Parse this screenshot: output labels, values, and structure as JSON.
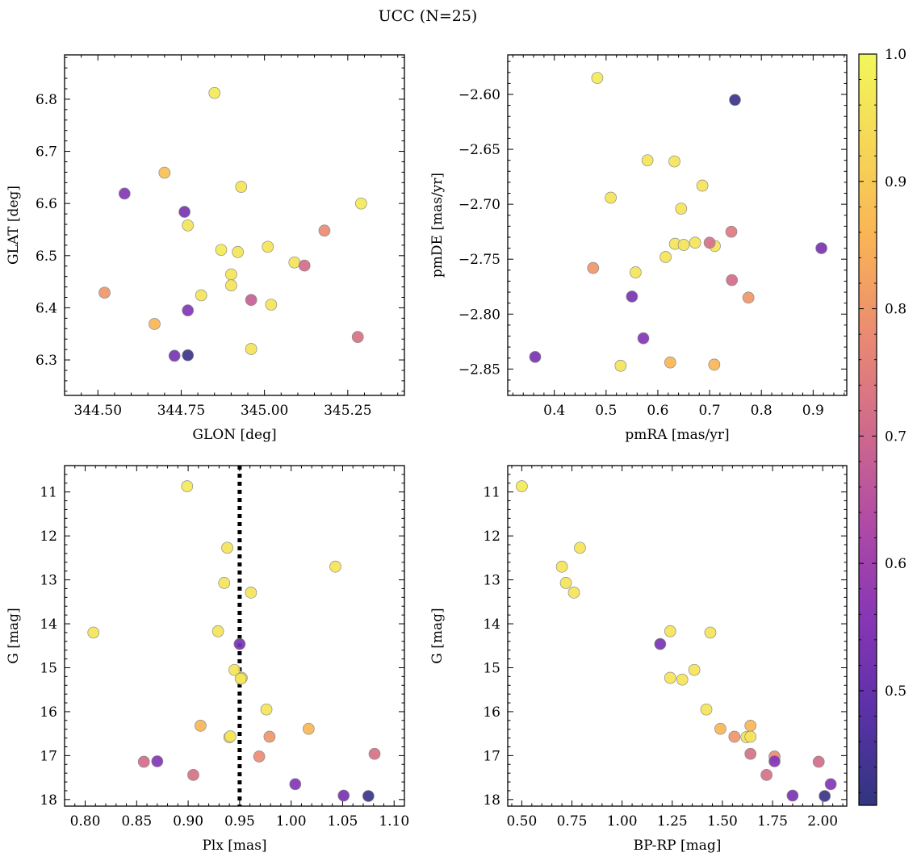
{
  "figure": {
    "title": "UCC (N=25)"
  },
  "colorbar": {
    "range": [
      0.41,
      1.0
    ],
    "ticks": [
      0.5,
      0.6,
      0.7,
      0.8,
      0.9,
      1.0
    ],
    "tick_labels": [
      "0.5",
      "0.6",
      "0.7",
      "0.8",
      "0.9",
      "1.0"
    ],
    "colormap": "plasma (truncated)",
    "stops": [
      "#31357f",
      "#5b31a8",
      "#8836b6",
      "#b04aa6",
      "#d06a8c",
      "#ea8a72",
      "#fab256",
      "#f6d656",
      "#f2f75a"
    ]
  },
  "chart_data": [
    {
      "type": "scatter",
      "xlabel": "GLON [deg]",
      "ylabel": "GLAT [deg]",
      "xlim": [
        344.4,
        345.42
      ],
      "ylim": [
        6.232,
        6.885
      ],
      "invert_y": false,
      "xticks": [
        344.5,
        344.75,
        345.0,
        345.25
      ],
      "xtick_labels": [
        "344.50",
        "344.75",
        "345.00",
        "345.25"
      ],
      "yticks": [
        6.3,
        6.4,
        6.5,
        6.6,
        6.7,
        6.8
      ],
      "ytick_labels": [
        "6.3",
        "6.4",
        "6.5",
        "6.6",
        "6.7",
        "6.8"
      ],
      "x": [
        344.85,
        344.7,
        344.58,
        344.76,
        344.77,
        344.93,
        345.29,
        344.87,
        344.92,
        345.01,
        345.09,
        345.18,
        345.12,
        344.9,
        344.9,
        344.81,
        344.52,
        344.96,
        345.02,
        344.77,
        344.67,
        345.28,
        344.96,
        344.73,
        344.77
      ],
      "y": [
        6.812,
        6.659,
        6.619,
        6.584,
        6.558,
        6.632,
        6.6,
        6.511,
        6.507,
        6.517,
        6.487,
        6.548,
        6.481,
        6.464,
        6.443,
        6.424,
        6.429,
        6.415,
        6.406,
        6.395,
        6.369,
        6.344,
        6.321,
        6.308,
        6.309
      ],
      "color_value": [
        0.97,
        0.88,
        0.55,
        0.53,
        0.96,
        0.96,
        0.97,
        0.97,
        0.96,
        0.96,
        0.96,
        0.78,
        0.71,
        0.96,
        0.96,
        0.96,
        0.8,
        0.68,
        0.96,
        0.55,
        0.86,
        0.72,
        0.96,
        0.53,
        0.43
      ]
    },
    {
      "type": "scatter",
      "xlabel": "pmRA [mas/yr]",
      "ylabel": "pmDE [mas/yr]",
      "xlim": [
        0.31,
        0.965
      ],
      "ylim": [
        -2.874,
        -2.564
      ],
      "invert_y": false,
      "xticks": [
        0.4,
        0.5,
        0.6,
        0.7,
        0.8,
        0.9
      ],
      "xtick_labels": [
        "0.4",
        "0.5",
        "0.6",
        "0.7",
        "0.8",
        "0.9"
      ],
      "yticks": [
        -2.85,
        -2.8,
        -2.75,
        -2.7,
        -2.65,
        -2.6
      ],
      "ytick_labels": [
        "−2.85",
        "−2.80",
        "−2.75",
        "−2.70",
        "−2.65",
        "−2.60"
      ],
      "x": [
        0.483,
        0.749,
        0.58,
        0.632,
        0.509,
        0.686,
        0.645,
        0.615,
        0.633,
        0.65,
        0.672,
        0.71,
        0.7,
        0.742,
        0.916,
        0.475,
        0.557,
        0.743,
        0.775,
        0.55,
        0.572,
        0.363,
        0.528,
        0.624,
        0.709
      ],
      "y": [
        -2.585,
        -2.605,
        -2.66,
        -2.661,
        -2.694,
        -2.683,
        -2.704,
        -2.748,
        -2.736,
        -2.737,
        -2.735,
        -2.738,
        -2.735,
        -2.725,
        -2.74,
        -2.758,
        -2.762,
        -2.769,
        -2.785,
        -2.784,
        -2.822,
        -2.839,
        -2.847,
        -2.844,
        -2.846
      ],
      "color_value": [
        0.97,
        0.43,
        0.96,
        0.96,
        0.96,
        0.96,
        0.96,
        0.96,
        0.96,
        0.96,
        0.96,
        0.96,
        0.72,
        0.74,
        0.53,
        0.8,
        0.96,
        0.71,
        0.8,
        0.53,
        0.55,
        0.53,
        0.96,
        0.86,
        0.86
      ]
    },
    {
      "type": "scatter",
      "xlabel": "Plx [mas]",
      "ylabel": "G [mag]",
      "xlim": [
        0.78,
        1.11
      ],
      "ylim": [
        18.15,
        10.4
      ],
      "invert_y": true,
      "xticks": [
        0.8,
        0.85,
        0.9,
        0.95,
        1.0,
        1.05,
        1.1
      ],
      "xtick_labels": [
        "0.80",
        "0.85",
        "0.90",
        "0.95",
        "1.00",
        "1.05",
        "1.10"
      ],
      "yticks": [
        11,
        12,
        13,
        14,
        15,
        16,
        17,
        18
      ],
      "ytick_labels": [
        "11",
        "12",
        "13",
        "14",
        "15",
        "16",
        "17",
        "18"
      ],
      "vline": {
        "x": 0.95,
        "style": "dotted"
      },
      "x": [
        0.899,
        0.938,
        0.935,
        1.043,
        0.961,
        0.808,
        0.929,
        0.95,
        0.945,
        0.952,
        0.976,
        0.912,
        1.017,
        0.94,
        0.979,
        0.969,
        1.081,
        0.857,
        0.87,
        0.905,
        1.004,
        1.051,
        1.075,
        0.941,
        0.951
      ],
      "y": [
        10.87,
        12.27,
        13.07,
        12.7,
        13.29,
        14.2,
        14.17,
        14.46,
        15.05,
        15.23,
        15.95,
        16.32,
        16.39,
        16.58,
        16.57,
        17.02,
        16.96,
        17.14,
        17.13,
        17.44,
        17.65,
        17.91,
        17.92,
        16.56,
        15.25
      ],
      "color_value": [
        0.97,
        0.96,
        0.96,
        0.96,
        0.96,
        0.96,
        0.96,
        0.53,
        0.96,
        0.96,
        0.96,
        0.86,
        0.86,
        0.96,
        0.8,
        0.78,
        0.72,
        0.71,
        0.55,
        0.72,
        0.55,
        0.53,
        0.43,
        0.96,
        0.96
      ]
    },
    {
      "type": "scatter",
      "xlabel": "BP-RP [mag]",
      "ylabel": "G [mag]",
      "xlim": [
        0.43,
        2.12
      ],
      "ylim": [
        18.15,
        10.4
      ],
      "invert_y": true,
      "xticks": [
        0.5,
        0.75,
        1.0,
        1.25,
        1.5,
        1.75,
        2.0
      ],
      "xtick_labels": [
        "0.50",
        "0.75",
        "1.00",
        "1.25",
        "1.50",
        "1.75",
        "2.00"
      ],
      "yticks": [
        11,
        12,
        13,
        14,
        15,
        16,
        17,
        18
      ],
      "ytick_labels": [
        "11",
        "12",
        "13",
        "14",
        "15",
        "16",
        "17",
        "18"
      ],
      "x": [
        0.5,
        0.79,
        0.7,
        0.72,
        0.76,
        1.24,
        1.44,
        1.19,
        1.36,
        1.24,
        1.3,
        1.42,
        1.49,
        1.64,
        1.62,
        1.64,
        1.56,
        1.76,
        1.64,
        1.76,
        1.98,
        1.72,
        2.04,
        1.85,
        2.01
      ],
      "y": [
        10.87,
        12.27,
        12.7,
        13.07,
        13.29,
        14.17,
        14.2,
        14.46,
        15.05,
        15.23,
        15.27,
        15.95,
        16.39,
        16.32,
        16.58,
        16.57,
        16.57,
        17.02,
        16.96,
        17.13,
        17.14,
        17.44,
        17.65,
        17.91,
        17.92
      ],
      "color_value": [
        0.97,
        0.96,
        0.96,
        0.96,
        0.96,
        0.96,
        0.96,
        0.53,
        0.96,
        0.96,
        0.96,
        0.96,
        0.86,
        0.86,
        0.96,
        0.96,
        0.8,
        0.78,
        0.72,
        0.55,
        0.71,
        0.72,
        0.55,
        0.53,
        0.43
      ]
    }
  ]
}
